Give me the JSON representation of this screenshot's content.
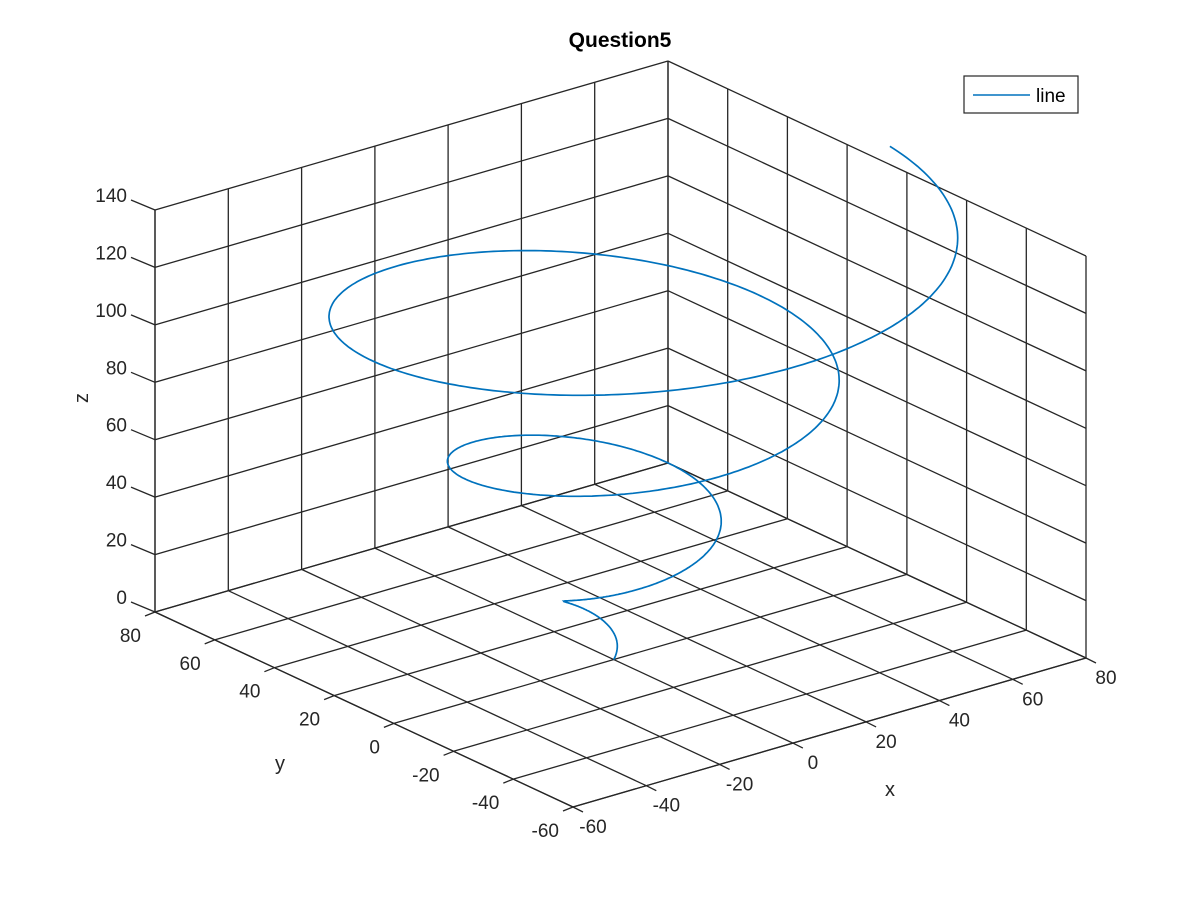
{
  "chart_data": {
    "type": "line3d",
    "title": "Question5",
    "xlabel": "x",
    "ylabel": "y",
    "zlabel": "z",
    "xlim": [
      -60,
      80
    ],
    "ylim": [
      -60,
      80
    ],
    "zlim": [
      0,
      140
    ],
    "x_ticks": [
      "-60",
      "-40",
      "-20",
      "0",
      "20",
      "40",
      "60",
      "80"
    ],
    "y_ticks": [
      "-60",
      "-40",
      "-20",
      "0",
      "20",
      "40",
      "60",
      "80"
    ],
    "z_ticks": [
      "0",
      "20",
      "40",
      "60",
      "80",
      "100",
      "120",
      "140"
    ],
    "grid": true,
    "box": true,
    "legend": {
      "position": "top-right",
      "entries": [
        "line"
      ]
    },
    "series": [
      {
        "name": "line",
        "color": "#0072BD",
        "description": "conical spiral z = 8t, x = 4t*cos(t), y = 4t*sin(t) for t in [0, 6*pi]",
        "t_range": [
          0,
          18.85
        ],
        "z_scale": 8,
        "r_scale": 4
      }
    ]
  }
}
